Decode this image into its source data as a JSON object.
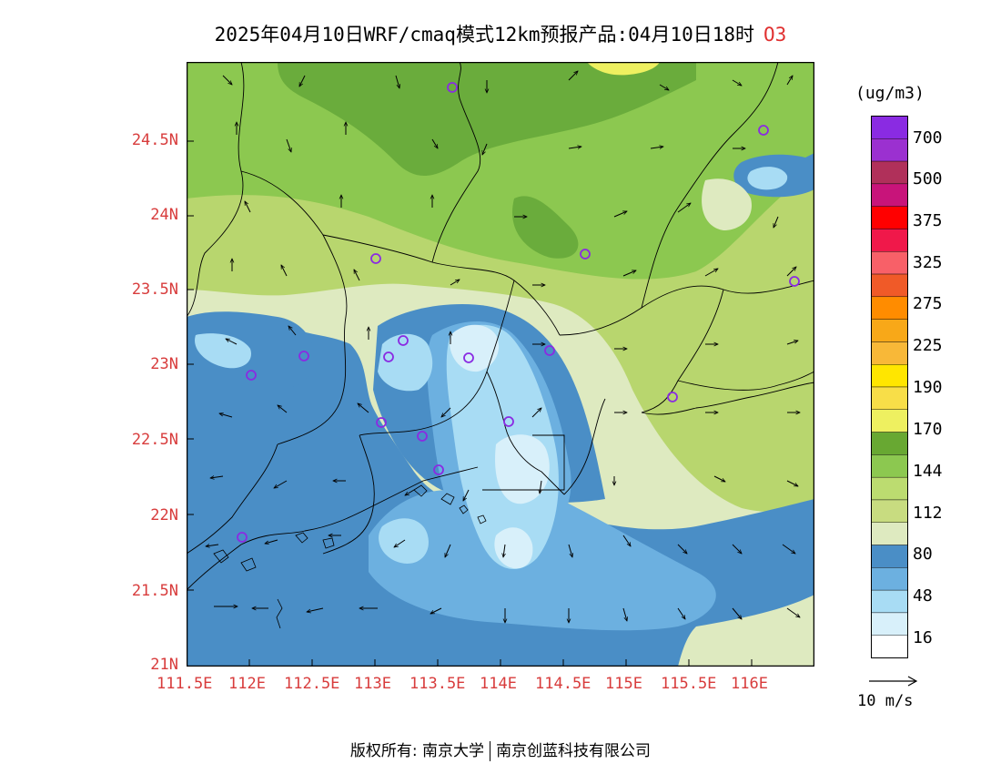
{
  "title": "2025年04月10日WRF/cmaq模式12km预报产品:04月10日18时",
  "species": "O3",
  "map": {
    "y_labels": [
      "24.5N",
      "24N",
      "23.5N",
      "23N",
      "22.5N",
      "22N",
      "21.5N",
      "21N"
    ],
    "x_labels": [
      "111.5E",
      "112E",
      "112.5E",
      "113E",
      "113.5E",
      "114E",
      "114.5E",
      "115E",
      "115.5E",
      "116E"
    ],
    "lat_range": [
      21,
      25
    ],
    "lon_range": [
      111.5,
      116.5
    ],
    "station_marker": "circle-marker",
    "wind_arrow": "wind-arrow-icon"
  },
  "legend": {
    "unit": "(ug/m3)",
    "labels": [
      "700",
      "500",
      "375",
      "325",
      "275",
      "225",
      "190",
      "170",
      "144",
      "112",
      "80",
      "48",
      "16"
    ],
    "colors": [
      "#8a2be2",
      "#9b30d0",
      "#b0305a",
      "#c8147a",
      "#ff0000",
      "#f0184a",
      "#f86068",
      "#f05a28",
      "#ff8c00",
      "#f8a818",
      "#f8b838",
      "#ffe600",
      "#f8de48",
      "#eef060",
      "#68a832",
      "#8cc850",
      "#bcdc70",
      "#c8dc80",
      "#deeac0",
      "#4a8ec6",
      "#6cb0e0",
      "#a8dcf4",
      "#d8f0fa",
      "#ffffff"
    ]
  },
  "wind_reference": "10 m/s",
  "copyright": {
    "prefix": "版权所有: 南京大学",
    "suffix": "南京创蓝科技有限公司"
  }
}
